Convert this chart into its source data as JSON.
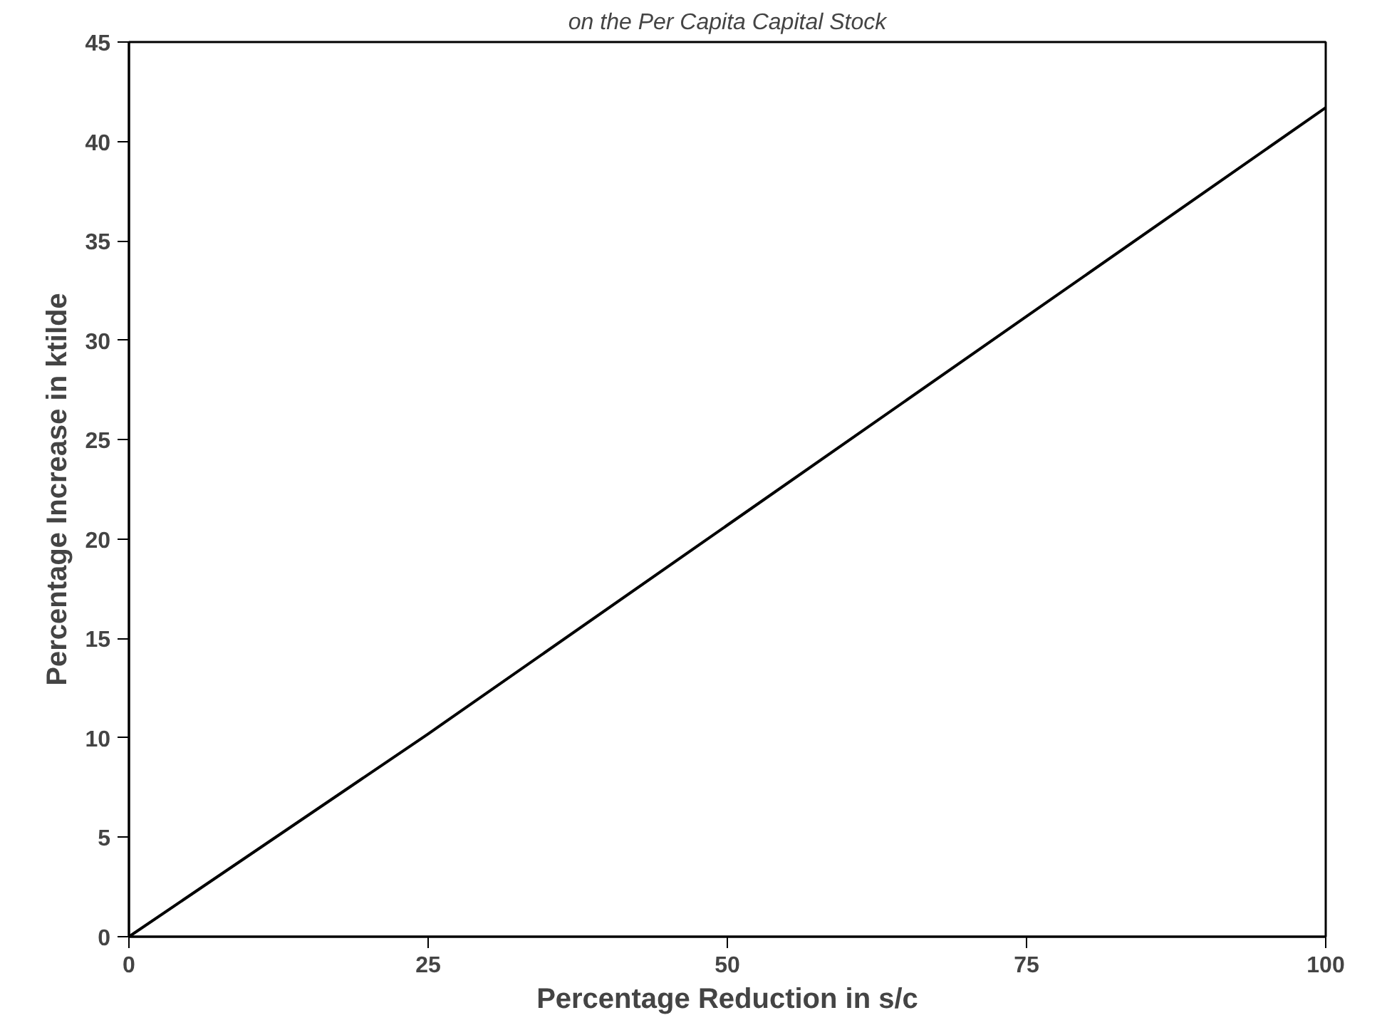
{
  "chart_data": {
    "type": "line",
    "title": "on the Per Capita Capital Stock",
    "xlabel": "Percentage Reduction in s/c",
    "ylabel": "Percentage Increase in ktilde",
    "x": [
      0,
      25,
      50,
      75,
      100
    ],
    "series": [
      {
        "color": "#000000",
        "values": [
          0,
          10.2,
          20.7,
          31.2,
          41.7
        ]
      }
    ],
    "xlim": [
      0,
      100
    ],
    "xticks": [
      0,
      25,
      50,
      75,
      100
    ],
    "ylim": [
      0,
      45
    ],
    "yticks": [
      0,
      5,
      10,
      15,
      20,
      25,
      30,
      35,
      40,
      45
    ],
    "marker": "none",
    "line_style": "solid"
  }
}
